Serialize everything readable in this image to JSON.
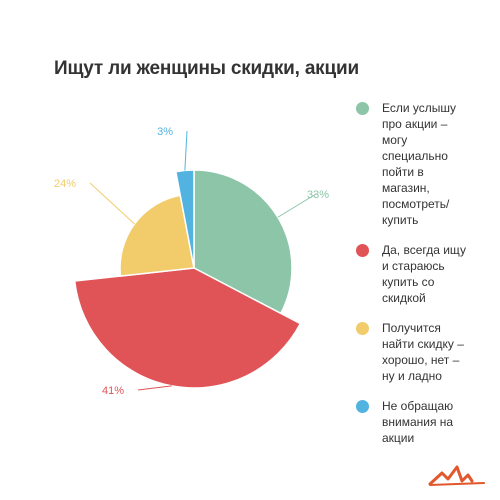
{
  "chart_data": {
    "type": "pie",
    "title": "Ищут ли женщины скидки, акции",
    "legend_position": "right",
    "series": [
      {
        "name": "Если услышу про акции – могу специально пойти в магазин, посмотреть/ купить",
        "value": 33,
        "label": "33%",
        "color": "#8cc5a7"
      },
      {
        "name": "Да, всегда ищу и стараюсь купить со скидкой",
        "value": 41,
        "label": "41%",
        "color": "#e05458"
      },
      {
        "name": "Получится найти скидку – хорошо, нет – ну и ладно",
        "value": 24,
        "label": "24%",
        "color": "#f2cc6b"
      },
      {
        "name": "Не обращаю внимания на акции",
        "value": 3,
        "label": "3%",
        "color": "#53b3e0"
      }
    ]
  },
  "legend": {
    "items": [
      "Если услышу\nпро акции –\nмогу\nспециально\nпойти в\nмагазин,\nпосмотреть/\nкупить",
      "Да, всегда ищу\nи стараюсь\nкупить со\nскидкой",
      "Получится\nнайти скидку –\nхорошо, нет –\nну и ладно",
      "Не обращаю\nвнимания на\nакции"
    ]
  },
  "logo": {
    "icon": "brand-logo-icon",
    "color": "#e2572c"
  }
}
